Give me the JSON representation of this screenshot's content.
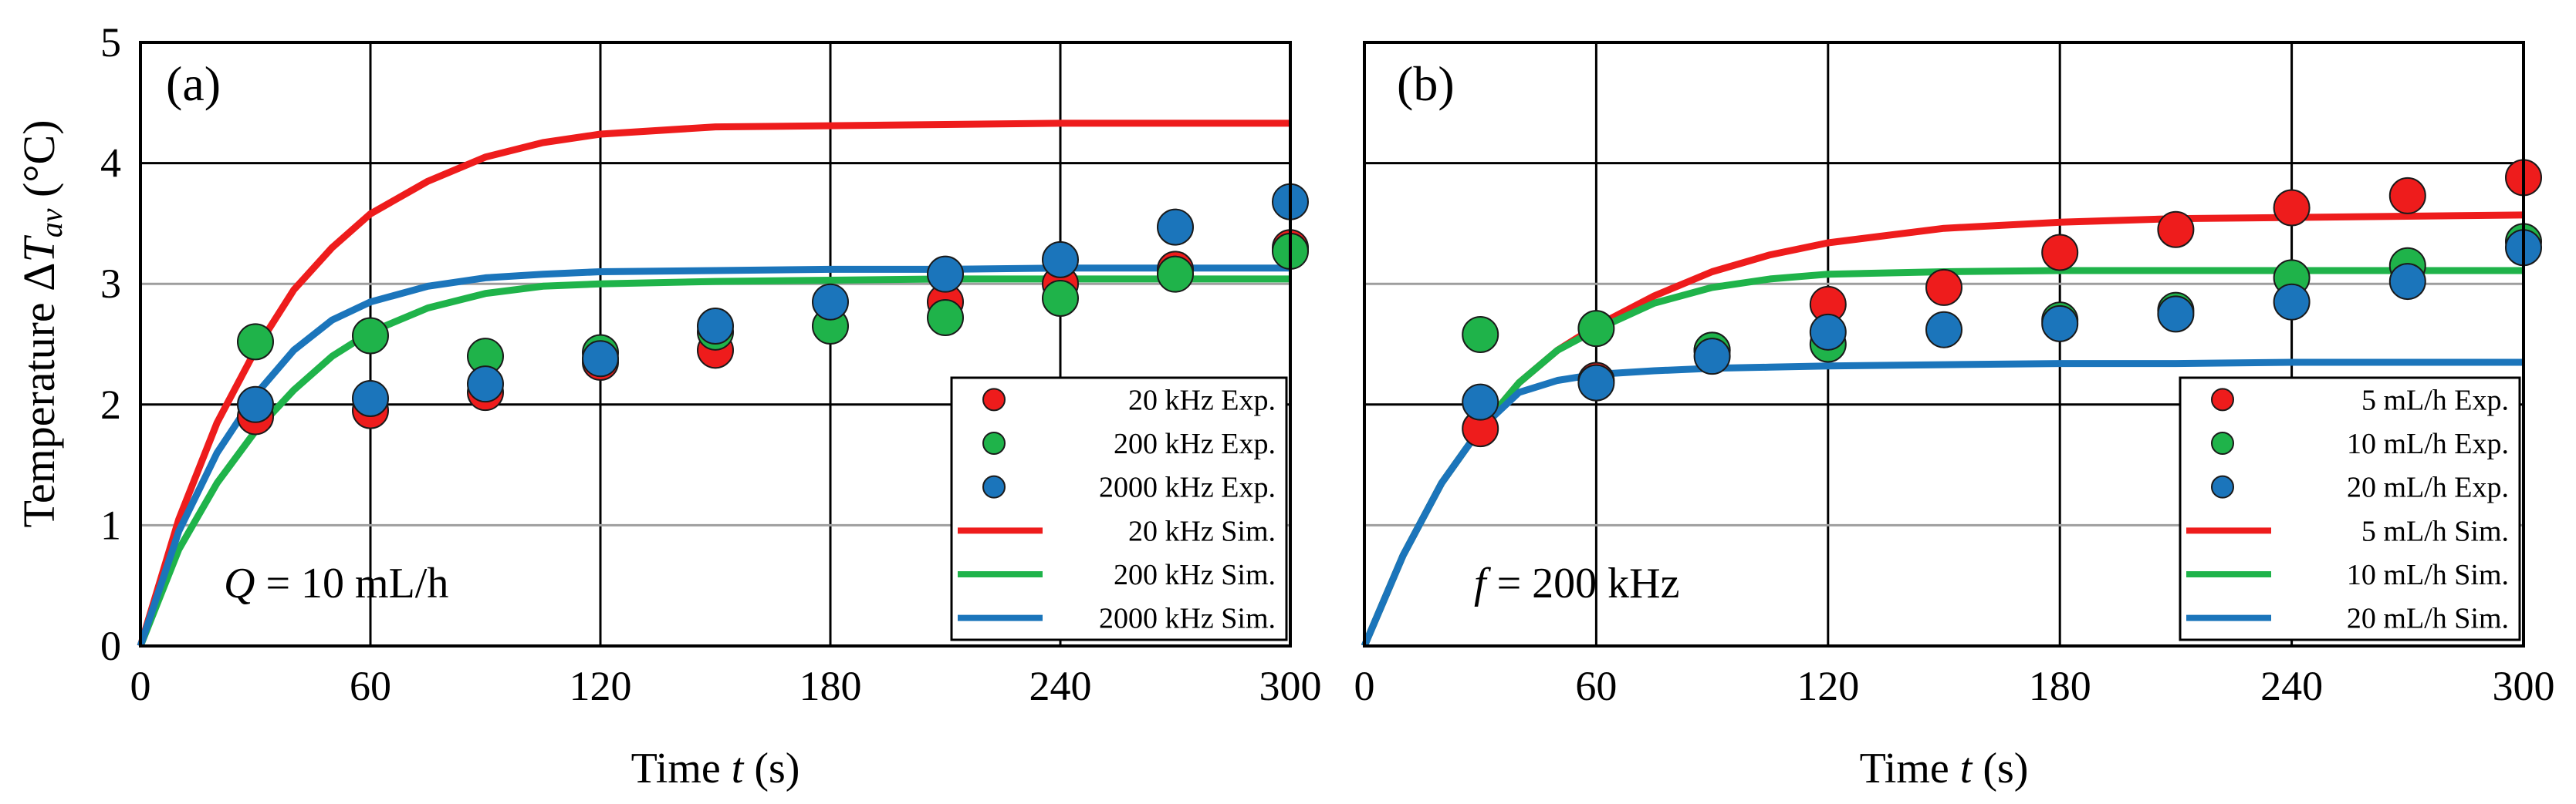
{
  "colors": {
    "red": "#ee1c1c",
    "green": "#1fb34a",
    "blue": "#1b75bb",
    "grid": "#000000",
    "grid_light": "#9e9e9e",
    "border": "#000000"
  },
  "y_axis_label": {
    "prefix": "Temperature Δ",
    "symbol": "T",
    "subscript": "av",
    "suffix": " (°C)"
  },
  "chart_data": [
    {
      "panel_label": "(a)",
      "type": "line+scatter",
      "annotation": {
        "var": "Q",
        "text": " = 10 mL/h"
      },
      "xlabel": {
        "text": "Time ",
        "var": "t",
        "unit": " (s)"
      },
      "xlim": [
        0,
        300
      ],
      "ylim": [
        0,
        5
      ],
      "x_ticks": [
        "0",
        "60",
        "120",
        "180",
        "240",
        "300"
      ],
      "y_ticks": [
        "0",
        "1",
        "2",
        "3",
        "4",
        "5"
      ],
      "scatter_series": [
        {
          "name": "20 kHz Exp.",
          "color": "red",
          "x": [
            30,
            60,
            90,
            120,
            150,
            210,
            240,
            270,
            300
          ],
          "y": [
            1.9,
            1.95,
            2.1,
            2.35,
            2.45,
            2.85,
            3.0,
            3.12,
            3.3
          ]
        },
        {
          "name": "200 kHz Exp.",
          "color": "green",
          "x": [
            30,
            60,
            90,
            120,
            150,
            180,
            210,
            240,
            270,
            300
          ],
          "y": [
            2.52,
            2.57,
            2.4,
            2.43,
            2.6,
            2.65,
            2.72,
            2.88,
            3.08,
            3.27
          ]
        },
        {
          "name": "2000 kHz Exp.",
          "color": "blue",
          "x": [
            30,
            60,
            90,
            120,
            150,
            180,
            210,
            240,
            270,
            300
          ],
          "y": [
            2.0,
            2.05,
            2.17,
            2.38,
            2.65,
            2.85,
            3.08,
            3.2,
            3.47,
            3.68
          ]
        }
      ],
      "line_series": [
        {
          "name": "20 kHz Sim.",
          "color": "red",
          "x": [
            0,
            10,
            20,
            30,
            40,
            50,
            60,
            75,
            90,
            105,
            120,
            150,
            180,
            210,
            240,
            270,
            300
          ],
          "y": [
            0,
            1.05,
            1.85,
            2.45,
            2.95,
            3.3,
            3.58,
            3.85,
            4.05,
            4.17,
            4.24,
            4.3,
            4.31,
            4.32,
            4.33,
            4.33,
            4.33
          ]
        },
        {
          "name": "200 kHz Sim.",
          "color": "green",
          "x": [
            0,
            10,
            20,
            30,
            40,
            50,
            60,
            75,
            90,
            105,
            120,
            150,
            180,
            210,
            240,
            270,
            300
          ],
          "y": [
            0,
            0.8,
            1.35,
            1.78,
            2.12,
            2.4,
            2.6,
            2.8,
            2.92,
            2.98,
            3.0,
            3.02,
            3.03,
            3.04,
            3.04,
            3.04,
            3.04
          ]
        },
        {
          "name": "2000 kHz Sim.",
          "color": "blue",
          "x": [
            0,
            10,
            20,
            30,
            40,
            50,
            60,
            75,
            90,
            105,
            120,
            150,
            180,
            210,
            240,
            270,
            300
          ],
          "y": [
            0,
            0.95,
            1.6,
            2.08,
            2.45,
            2.7,
            2.85,
            2.98,
            3.05,
            3.08,
            3.1,
            3.11,
            3.12,
            3.12,
            3.13,
            3.13,
            3.13
          ]
        }
      ],
      "legend_entries": [
        "20 kHz Exp.",
        "200 kHz Exp.",
        "2000 kHz Exp.",
        "20 kHz Sim.",
        "200 kHz Sim.",
        "2000 kHz Sim."
      ],
      "legend_position": "bottom-right"
    },
    {
      "panel_label": "(b)",
      "type": "line+scatter",
      "annotation": {
        "var": "f",
        "text": " = 200 kHz"
      },
      "xlabel": {
        "text": "Time ",
        "var": "t",
        "unit": " (s)"
      },
      "xlim": [
        0,
        300
      ],
      "ylim": [
        0,
        5
      ],
      "x_ticks": [
        "0",
        "60",
        "120",
        "180",
        "240",
        "300"
      ],
      "y_ticks": [
        "0",
        "1",
        "2",
        "3",
        "4",
        "5"
      ],
      "scatter_series": [
        {
          "name": "5 mL/h Exp.",
          "color": "red",
          "x": [
            30,
            60,
            90,
            120,
            150,
            180,
            210,
            240,
            270,
            300
          ],
          "y": [
            1.8,
            2.2,
            2.45,
            2.83,
            2.97,
            3.26,
            3.45,
            3.63,
            3.73,
            3.88
          ]
        },
        {
          "name": "10 mL/h Exp.",
          "color": "green",
          "x": [
            30,
            60,
            90,
            120,
            180,
            210,
            240,
            270,
            300
          ],
          "y": [
            2.58,
            2.63,
            2.45,
            2.5,
            2.7,
            2.78,
            3.05,
            3.15,
            3.35
          ]
        },
        {
          "name": "20 mL/h Exp.",
          "color": "blue",
          "x": [
            30,
            60,
            90,
            120,
            150,
            180,
            210,
            240,
            270,
            300
          ],
          "y": [
            2.02,
            2.18,
            2.4,
            2.6,
            2.62,
            2.67,
            2.75,
            2.85,
            3.02,
            3.3
          ]
        }
      ],
      "line_series": [
        {
          "name": "5 mL/h Sim.",
          "color": "red",
          "x": [
            0,
            10,
            20,
            30,
            40,
            50,
            60,
            75,
            90,
            105,
            120,
            150,
            180,
            210,
            240,
            270,
            300
          ],
          "y": [
            0,
            0.75,
            1.35,
            1.8,
            2.18,
            2.45,
            2.65,
            2.9,
            3.1,
            3.24,
            3.34,
            3.46,
            3.51,
            3.54,
            3.55,
            3.56,
            3.57
          ]
        },
        {
          "name": "10 mL/h Sim.",
          "color": "green",
          "x": [
            0,
            10,
            20,
            30,
            40,
            50,
            60,
            75,
            90,
            105,
            120,
            150,
            180,
            210,
            240,
            270,
            300
          ],
          "y": [
            0,
            0.75,
            1.35,
            1.8,
            2.18,
            2.45,
            2.62,
            2.84,
            2.97,
            3.04,
            3.08,
            3.1,
            3.11,
            3.11,
            3.11,
            3.11,
            3.11
          ]
        },
        {
          "name": "20 mL/h Sim.",
          "color": "blue",
          "x": [
            0,
            10,
            20,
            30,
            40,
            50,
            60,
            75,
            90,
            105,
            120,
            150,
            180,
            210,
            240,
            270,
            300
          ],
          "y": [
            0,
            0.75,
            1.35,
            1.8,
            2.1,
            2.2,
            2.25,
            2.28,
            2.3,
            2.31,
            2.32,
            2.33,
            2.34,
            2.34,
            2.35,
            2.35,
            2.35
          ]
        }
      ],
      "legend_entries": [
        "5 mL/h Exp.",
        "10 mL/h Exp.",
        "20 mL/h Exp.",
        "5 mL/h Sim.",
        "10 mL/h Sim.",
        "20 mL/h Sim."
      ],
      "legend_position": "bottom-right"
    }
  ]
}
